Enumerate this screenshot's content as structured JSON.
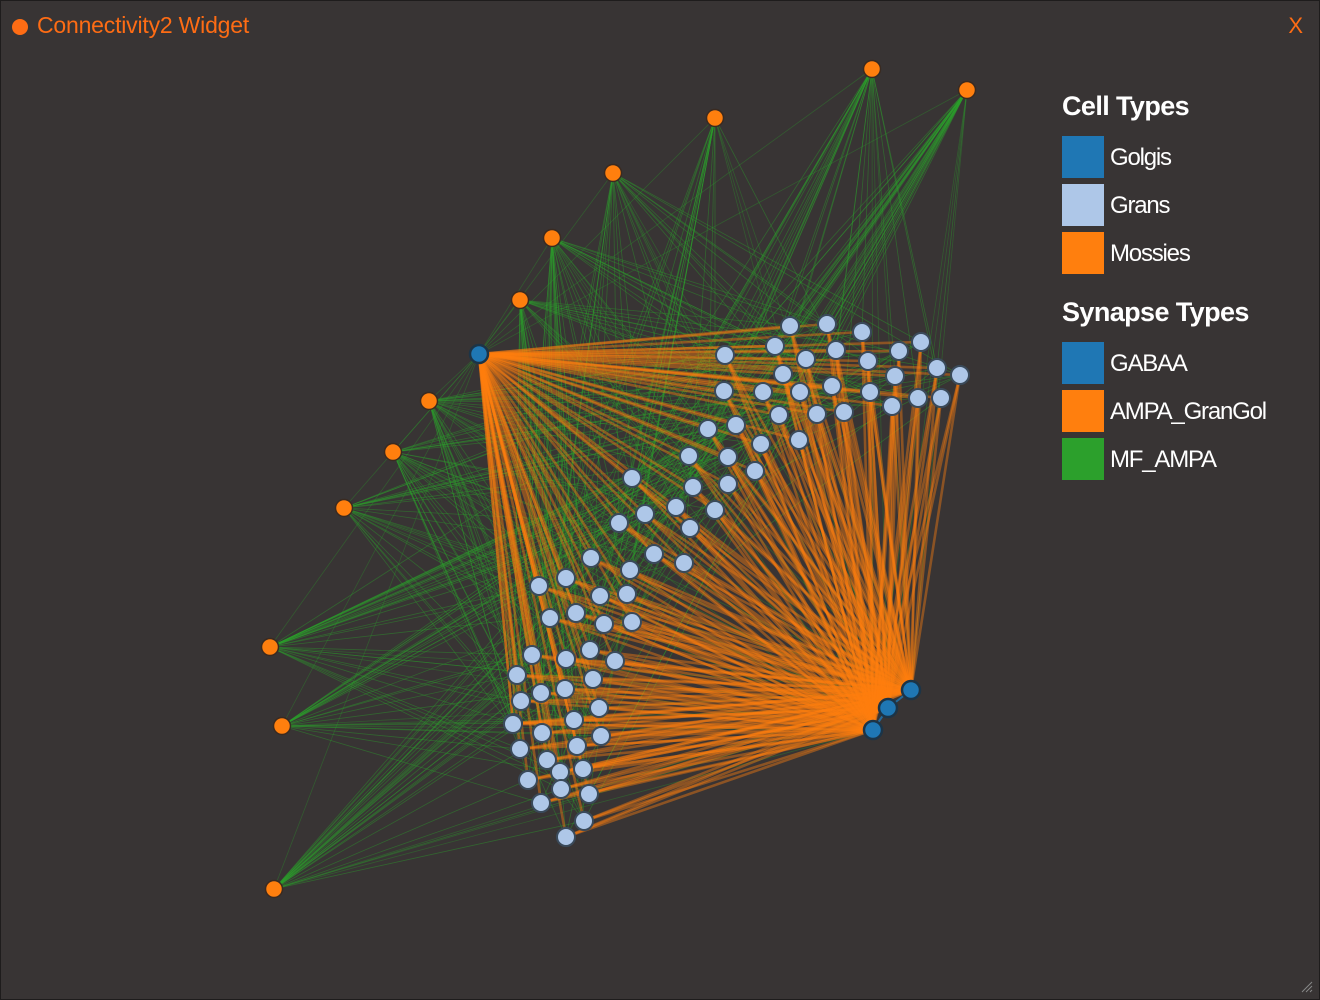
{
  "window": {
    "title": "Connectivity2 Widget",
    "close_label": "X",
    "accent_color": "#fe6c14",
    "background_color": "#383434"
  },
  "legend": {
    "cell_types_title": "Cell Types",
    "cell_types": [
      {
        "label": "Golgis",
        "color": "#1f77b4"
      },
      {
        "label": "Grans",
        "color": "#aec7e8"
      },
      {
        "label": "Mossies",
        "color": "#ff7f0e"
      }
    ],
    "synapse_types_title": "Synapse Types",
    "synapse_types": [
      {
        "label": "GABAA",
        "color": "#1f77b4"
      },
      {
        "label": "AMPA_GranGol",
        "color": "#ff7f0e"
      },
      {
        "label": "MF_AMPA",
        "color": "#2ca02c"
      }
    ]
  },
  "graph": {
    "node_colors": {
      "golgi": "#1f77b4",
      "gran": "#aec7e8",
      "mossy": "#ff7f0e"
    },
    "edge_colors": {
      "GABAA": "#1f77b4",
      "AMPA_GranGol": "#ff7f0e",
      "MF_AMPA": "#2ca02c"
    },
    "node_counts": {
      "golgi": 4,
      "gran": 96,
      "mossy": 12
    }
  }
}
